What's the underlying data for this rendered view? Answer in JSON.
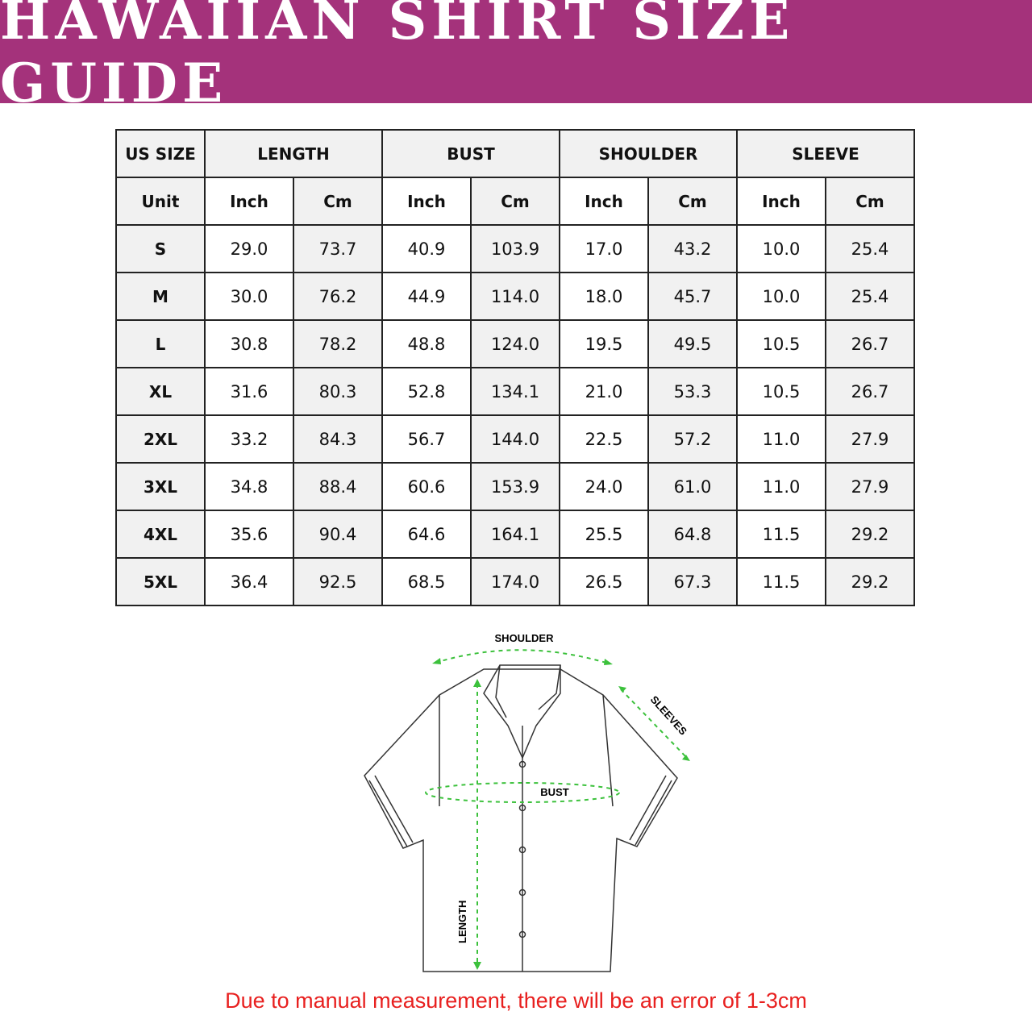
{
  "title": "HAWAIIAN SHIRT SIZE GUIDE",
  "colors": {
    "banner": "#a4327b",
    "note": "#e8201f",
    "measure_arrows": "#3cc13c"
  },
  "table": {
    "size_header": "US SIZE",
    "groups": [
      "LENGTH",
      "BUST",
      "SHOULDER",
      "SLEEVE"
    ],
    "unit_label": "Unit",
    "units": [
      "Inch",
      "Cm",
      "Inch",
      "Cm",
      "Inch",
      "Cm",
      "Inch",
      "Cm"
    ],
    "rows": [
      {
        "size": "S",
        "values": [
          "29.0",
          "73.7",
          "40.9",
          "103.9",
          "17.0",
          "43.2",
          "10.0",
          "25.4"
        ]
      },
      {
        "size": "M",
        "values": [
          "30.0",
          "76.2",
          "44.9",
          "114.0",
          "18.0",
          "45.7",
          "10.0",
          "25.4"
        ]
      },
      {
        "size": "L",
        "values": [
          "30.8",
          "78.2",
          "48.8",
          "124.0",
          "19.5",
          "49.5",
          "10.5",
          "26.7"
        ]
      },
      {
        "size": "XL",
        "values": [
          "31.6",
          "80.3",
          "52.8",
          "134.1",
          "21.0",
          "53.3",
          "10.5",
          "26.7"
        ]
      },
      {
        "size": "2XL",
        "values": [
          "33.2",
          "84.3",
          "56.7",
          "144.0",
          "22.5",
          "57.2",
          "11.0",
          "27.9"
        ]
      },
      {
        "size": "3XL",
        "values": [
          "34.8",
          "88.4",
          "60.6",
          "153.9",
          "24.0",
          "61.0",
          "11.0",
          "27.9"
        ]
      },
      {
        "size": "4XL",
        "values": [
          "35.6",
          "90.4",
          "64.6",
          "164.1",
          "25.5",
          "64.8",
          "11.5",
          "29.2"
        ]
      },
      {
        "size": "5XL",
        "values": [
          "36.4",
          "92.5",
          "68.5",
          "174.0",
          "26.5",
          "67.3",
          "11.5",
          "29.2"
        ]
      }
    ]
  },
  "diagram": {
    "shoulder": "SHOULDER",
    "sleeves": "SLEEVES",
    "bust": "BUST",
    "length": "LENGTH"
  },
  "note": "Due to manual measurement, there will be an error of 1-3cm"
}
